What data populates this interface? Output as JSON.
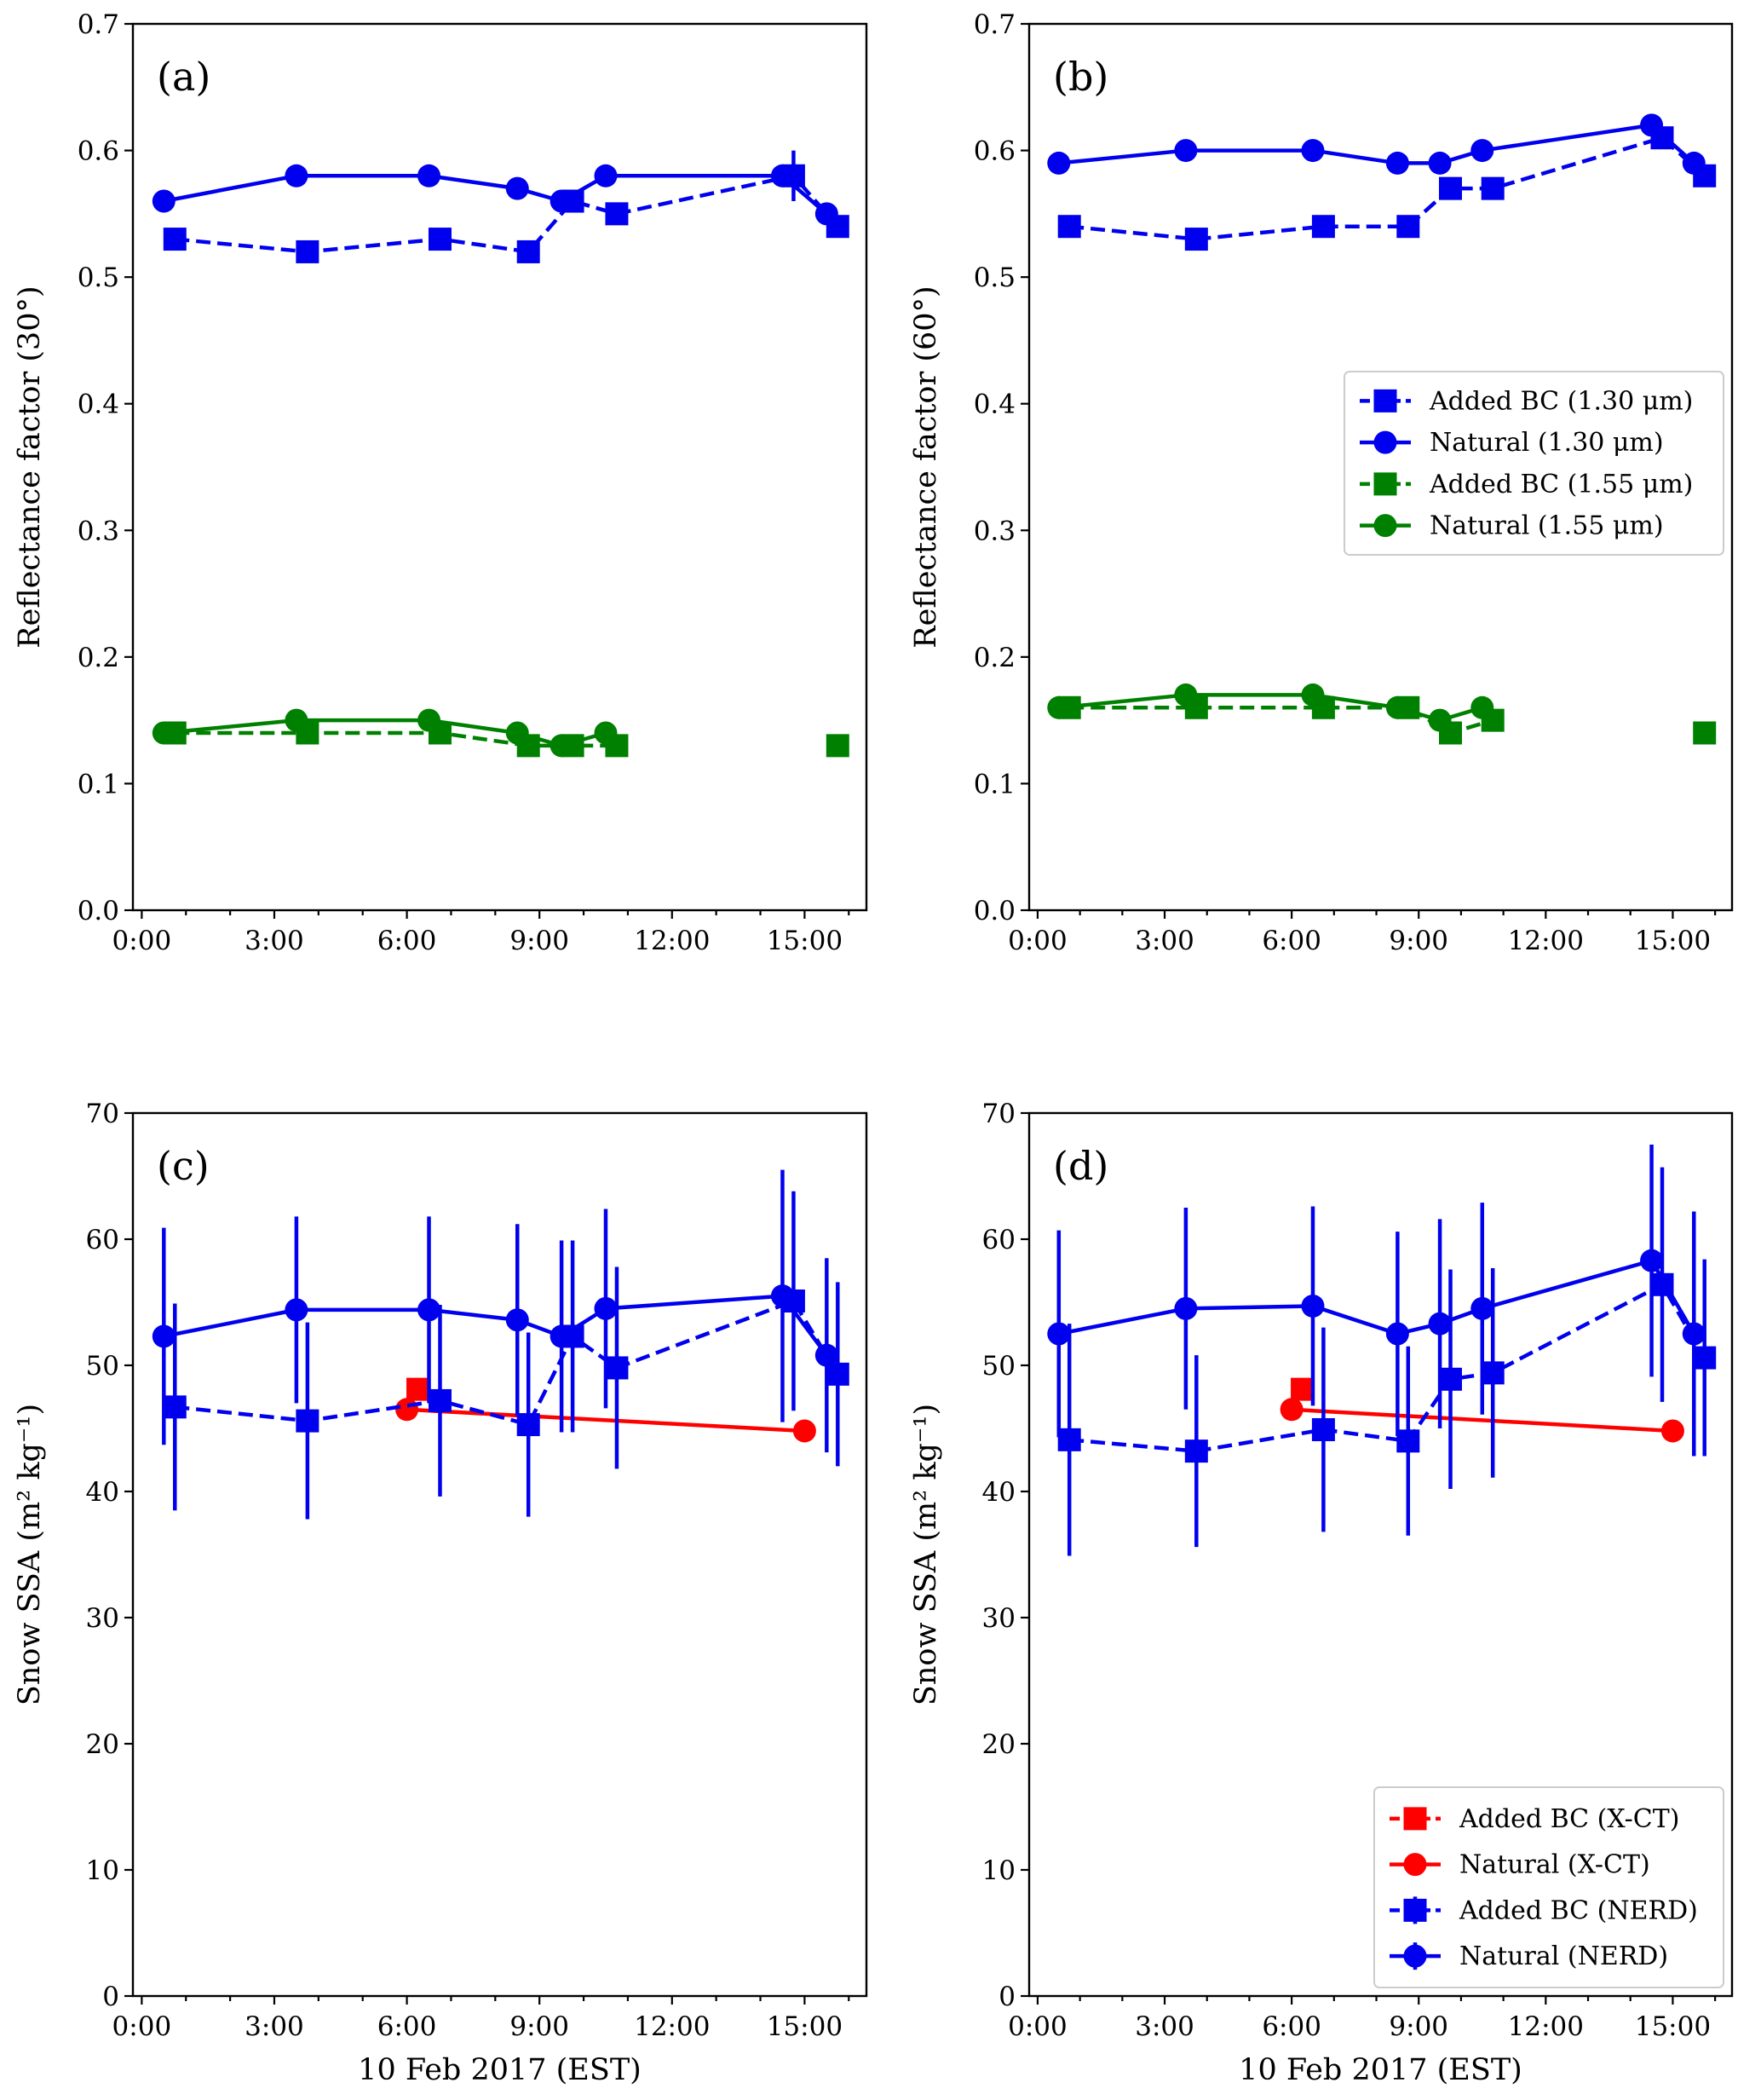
{
  "chart_data": [
    {
      "panel": "(a)",
      "type": "line",
      "xlabel": "",
      "ylabel": "Reflectance factor (30°)",
      "xlim": [
        -0.2,
        16.4
      ],
      "ylim": [
        0.0,
        0.7
      ],
      "yticks": [
        "0.0",
        "0.1",
        "0.2",
        "0.3",
        "0.4",
        "0.5",
        "0.6",
        "0.7"
      ],
      "xticks": [
        "0:00",
        "3:00",
        "6:00",
        "9:00",
        "12:00",
        "15:00"
      ],
      "series": [
        {
          "name": "Added BC (1.30 μm)",
          "color": "#0000ee",
          "marker": "square",
          "dashed": true,
          "x": [
            0.75,
            3.75,
            6.75,
            8.75,
            9.75,
            10.75,
            14.75,
            15.75
          ],
          "y": [
            0.53,
            0.52,
            0.53,
            0.52,
            0.56,
            0.55,
            0.58,
            0.54
          ],
          "err": [
            0,
            0,
            0,
            0,
            0,
            0,
            0.02,
            0
          ]
        },
        {
          "name": "Natural (1.30 μm)",
          "color": "#0000ee",
          "marker": "circle",
          "dashed": false,
          "x": [
            0.5,
            3.5,
            6.5,
            8.5,
            9.5,
            10.5,
            14.5,
            15.5
          ],
          "y": [
            0.56,
            0.58,
            0.58,
            0.57,
            0.56,
            0.58,
            0.58,
            0.55
          ],
          "err": []
        },
        {
          "name": "Added BC (1.55 μm)",
          "color": "#008000",
          "marker": "square",
          "dashed": true,
          "x": [
            0.75,
            3.75,
            6.75,
            8.75,
            9.75,
            10.75
          ],
          "y": [
            0.14,
            0.14,
            0.14,
            0.13,
            0.13,
            0.13
          ],
          "err": [],
          "extra_points": [
            {
              "x": 15.75,
              "y": 0.13
            }
          ]
        },
        {
          "name": "Natural (1.55 μm)",
          "color": "#008000",
          "marker": "circle",
          "dashed": false,
          "x": [
            0.5,
            3.5,
            6.5,
            8.5,
            9.5,
            10.5
          ],
          "y": [
            0.14,
            0.15,
            0.15,
            0.14,
            0.13,
            0.14
          ],
          "err": []
        }
      ]
    },
    {
      "panel": "(b)",
      "type": "line",
      "xlabel": "",
      "ylabel": "Reflectance factor (60°)",
      "xlim": [
        -0.2,
        16.4
      ],
      "ylim": [
        0.0,
        0.7
      ],
      "yticks": [
        "0.0",
        "0.1",
        "0.2",
        "0.3",
        "0.4",
        "0.5",
        "0.6",
        "0.7"
      ],
      "xticks": [
        "0:00",
        "3:00",
        "6:00",
        "9:00",
        "12:00",
        "15:00"
      ],
      "legend": "center-right",
      "series": [
        {
          "name": "Added BC (1.30 μm)",
          "color": "#0000ee",
          "marker": "square",
          "dashed": true,
          "x": [
            0.75,
            3.75,
            6.75,
            8.75,
            9.75,
            10.75,
            14.75,
            15.75
          ],
          "y": [
            0.54,
            0.53,
            0.54,
            0.54,
            0.57,
            0.57,
            0.61,
            0.58
          ],
          "err": []
        },
        {
          "name": "Natural (1.30 μm)",
          "color": "#0000ee",
          "marker": "circle",
          "dashed": false,
          "x": [
            0.5,
            3.5,
            6.5,
            8.5,
            9.5,
            10.5,
            14.5,
            15.5
          ],
          "y": [
            0.59,
            0.6,
            0.6,
            0.59,
            0.59,
            0.6,
            0.62,
            0.59
          ],
          "err": []
        },
        {
          "name": "Added BC (1.55 μm)",
          "color": "#008000",
          "marker": "square",
          "dashed": true,
          "x": [
            0.75,
            3.75,
            6.75,
            8.75,
            9.75,
            10.75
          ],
          "y": [
            0.16,
            0.16,
            0.16,
            0.16,
            0.14,
            0.15
          ],
          "err": [],
          "extra_points": [
            {
              "x": 15.75,
              "y": 0.14
            }
          ]
        },
        {
          "name": "Natural (1.55 μm)",
          "color": "#008000",
          "marker": "circle",
          "dashed": false,
          "x": [
            0.5,
            3.5,
            6.5,
            8.5,
            9.5,
            10.5
          ],
          "y": [
            0.16,
            0.17,
            0.17,
            0.16,
            0.15,
            0.16
          ],
          "err": []
        }
      ]
    },
    {
      "panel": "(c)",
      "type": "line",
      "xlabel": "10 Feb 2017 (EST)",
      "ylabel": "Snow SSA (m² kg⁻¹)",
      "xlim": [
        -0.2,
        16.4
      ],
      "ylim": [
        0,
        70
      ],
      "yticks": [
        "0",
        "10",
        "20",
        "30",
        "40",
        "50",
        "60",
        "70"
      ],
      "xticks": [
        "0:00",
        "3:00",
        "6:00",
        "9:00",
        "12:00",
        "15:00"
      ],
      "series": [
        {
          "name": "Added BC (X-CT)",
          "color": "#ff0000",
          "marker": "square",
          "dashed": true,
          "x": [
            6.25
          ],
          "y": [
            48.1
          ],
          "err": []
        },
        {
          "name": "Natural (X-CT)",
          "color": "#ff0000",
          "marker": "circle",
          "dashed": false,
          "x": [
            6.0,
            15.0
          ],
          "y": [
            46.5,
            44.8
          ],
          "err": []
        },
        {
          "name": "Added BC (NERD)",
          "color": "#0000ee",
          "marker": "square",
          "dashed": true,
          "x": [
            0.75,
            3.75,
            6.75,
            8.75,
            9.75,
            10.75,
            14.75,
            15.75
          ],
          "y": [
            46.7,
            45.6,
            47.2,
            45.3,
            52.3,
            49.8,
            55.1,
            49.3
          ],
          "err": [
            8.2,
            7.8,
            7.6,
            7.3,
            7.6,
            8.0,
            8.7,
            7.3
          ]
        },
        {
          "name": "Natural (NERD)",
          "color": "#0000ee",
          "marker": "circle",
          "dashed": false,
          "x": [
            0.5,
            3.5,
            6.5,
            8.5,
            9.5,
            10.5,
            14.5,
            15.5
          ],
          "y": [
            52.3,
            54.4,
            54.4,
            53.6,
            52.3,
            54.5,
            55.5,
            50.8
          ],
          "err": [
            8.6,
            7.4,
            7.4,
            7.6,
            7.6,
            7.9,
            10.0,
            7.7
          ]
        }
      ]
    },
    {
      "panel": "(d)",
      "type": "line",
      "xlabel": "10 Feb 2017 (EST)",
      "ylabel": "Snow SSA (m² kg⁻¹)",
      "xlim": [
        -0.2,
        16.4
      ],
      "ylim": [
        0,
        70
      ],
      "yticks": [
        "0",
        "10",
        "20",
        "30",
        "40",
        "50",
        "60",
        "70"
      ],
      "xticks": [
        "0:00",
        "3:00",
        "6:00",
        "9:00",
        "12:00",
        "15:00"
      ],
      "legend": "lower-right",
      "series": [
        {
          "name": "Added BC (X-CT)",
          "color": "#ff0000",
          "marker": "square",
          "dashed": true,
          "x": [
            6.25
          ],
          "y": [
            48.1
          ],
          "err": []
        },
        {
          "name": "Natural (X-CT)",
          "color": "#ff0000",
          "marker": "circle",
          "dashed": false,
          "x": [
            6.0,
            15.0
          ],
          "y": [
            46.5,
            44.8
          ],
          "err": []
        },
        {
          "name": "Added BC (NERD)",
          "color": "#0000ee",
          "marker": "square",
          "dashed": true,
          "x": [
            0.75,
            3.75,
            6.75,
            8.75,
            9.75,
            10.75,
            14.75,
            15.75
          ],
          "y": [
            44.1,
            43.2,
            44.9,
            44.0,
            48.9,
            49.4,
            56.4,
            50.6
          ],
          "err": [
            9.2,
            7.6,
            8.1,
            7.5,
            8.7,
            8.3,
            9.3,
            7.8
          ]
        },
        {
          "name": "Natural (NERD)",
          "color": "#0000ee",
          "marker": "circle",
          "dashed": false,
          "x": [
            0.5,
            3.5,
            6.5,
            8.5,
            9.5,
            10.5,
            14.5,
            15.5
          ],
          "y": [
            52.5,
            54.5,
            54.7,
            52.5,
            53.3,
            54.5,
            58.3,
            52.5
          ],
          "err": [
            8.2,
            8.0,
            7.9,
            8.1,
            8.3,
            8.4,
            9.2,
            9.7
          ]
        }
      ]
    }
  ]
}
